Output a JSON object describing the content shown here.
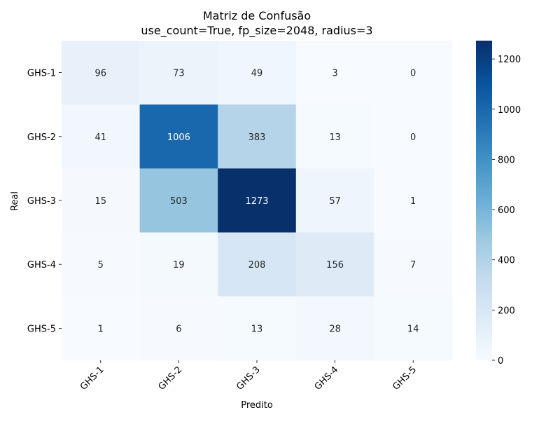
{
  "chart_data": {
    "type": "heatmap",
    "title_line1": "Matriz de Confusão",
    "title_line2": "use_count=True, fp_size=2048, radius=3",
    "xlabel": "Predito",
    "ylabel": "Real",
    "x_categories": [
      "GHS-1",
      "GHS-2",
      "GHS-3",
      "GHS-4",
      "GHS-5"
    ],
    "y_categories": [
      "GHS-1",
      "GHS-2",
      "GHS-3",
      "GHS-4",
      "GHS-5"
    ],
    "values": [
      [
        96,
        73,
        49,
        3,
        0
      ],
      [
        41,
        1006,
        383,
        13,
        0
      ],
      [
        15,
        503,
        1273,
        57,
        1
      ],
      [
        5,
        19,
        208,
        156,
        7
      ],
      [
        1,
        6,
        13,
        28,
        14
      ]
    ],
    "colormap": "Blues",
    "vmin": 0,
    "vmax": 1273,
    "colorbar_ticks": [
      0,
      200,
      400,
      600,
      800,
      1000,
      1200
    ],
    "colors": {
      "low": "#f7fbff",
      "high": "#08306b",
      "text_dark": "#262626",
      "text_light": "#ffffff"
    }
  }
}
